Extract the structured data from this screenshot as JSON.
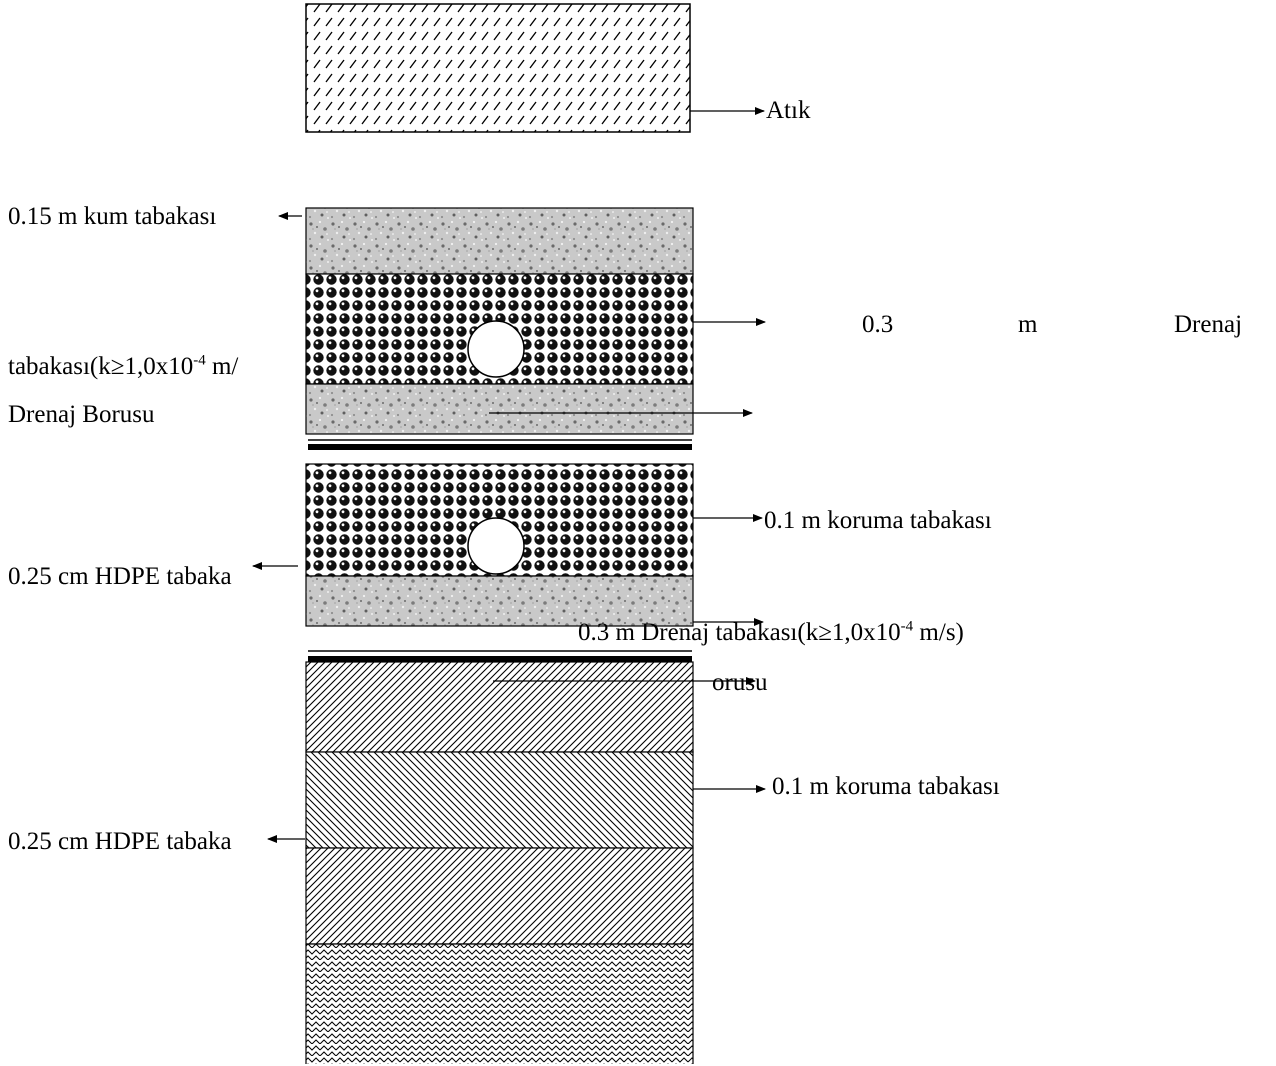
{
  "labels": {
    "waste": "Atık",
    "sand_layer": "0.15 m kum tabakası",
    "drain_row_1": {
      "a": "0.3",
      "b": "m",
      "c": "Drenaj"
    },
    "drain_cont_prefix": "tabakası(k≥1,0x10",
    "drain_cont_exp": "-4",
    "drain_cont_suffix": " m/",
    "drain_pipe": "Drenaj Borusu",
    "protection_1": "0.1 m koruma tabakası",
    "hdpe_1": "0.25 cm HDPE tabaka",
    "drain_2_prefix": "0.3 m Drenaj tabakası(k≥1,0x10",
    "drain_2_exp": "-4",
    "drain_2_suffix": " m/s)",
    "pipe_2_fragment": "orusu",
    "protection_2": "0.1 m koruma tabakası",
    "hdpe_2": "0.25 cm HDPE tabaka"
  },
  "icons": {
    "waste_pattern": "diagonal-dash-hatch",
    "sand_pattern": "granular-speckle",
    "gravel_pattern": "pebble-dots",
    "pipe": "circle-pipe",
    "liner": "black-line-liner",
    "clay_patterns": [
      "diagonal-hatch-right",
      "diagonal-hatch-left",
      "diagonal-hatch-right",
      "zigzag-hatch"
    ]
  }
}
